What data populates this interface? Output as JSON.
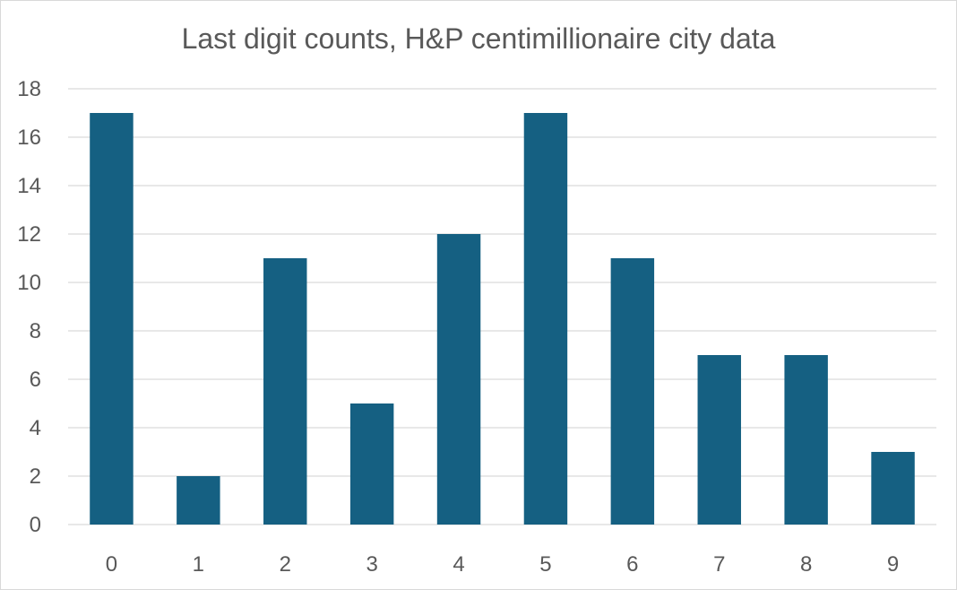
{
  "chart_data": {
    "type": "bar",
    "title": "Last digit counts, H&P centimillionaire city data",
    "xlabel": "",
    "ylabel": "",
    "categories": [
      "0",
      "1",
      "2",
      "3",
      "4",
      "5",
      "6",
      "7",
      "8",
      "9"
    ],
    "values": [
      17,
      2,
      11,
      5,
      12,
      17,
      11,
      7,
      7,
      3
    ],
    "ylim": [
      0,
      18
    ],
    "yticks": [
      "0",
      "2",
      "4",
      "6",
      "8",
      "10",
      "12",
      "14",
      "16",
      "18"
    ],
    "grid": true,
    "legend": "none",
    "bar_color": "#156082"
  }
}
